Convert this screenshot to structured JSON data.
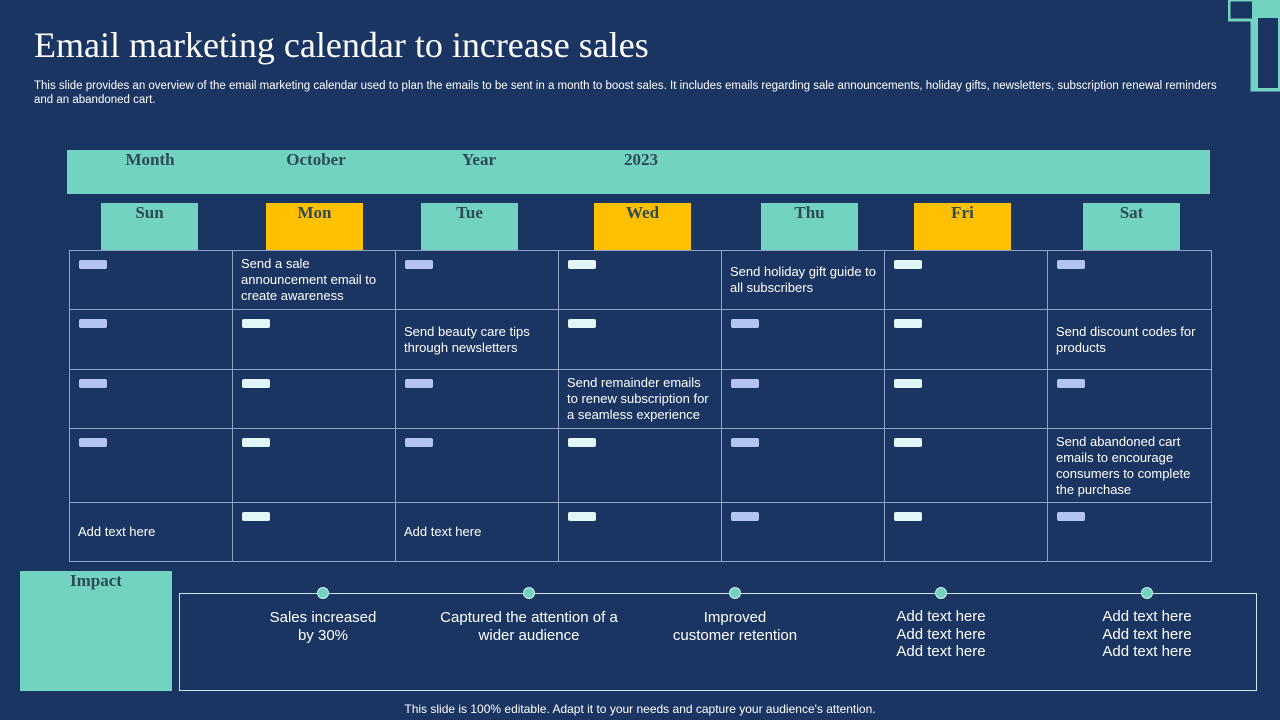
{
  "header": {
    "title": "Email marketing calendar to increase sales",
    "description": "This slide provides an overview of the email marketing calendar used to plan the emails to be sent in a month to boost sales. It includes emails regarding sale announcements, holiday gifts, newsletters, subscription renewal reminders and an abandoned cart."
  },
  "calendar": {
    "month_label": "Month",
    "month": "October",
    "year_label": "Year",
    "year": "2023",
    "days": [
      "Sun",
      "Mon",
      "Tue",
      "Wed",
      "Thu",
      "Fri",
      "Sat"
    ],
    "rows": [
      [
        null,
        "Send a sale announcement email to create awareness",
        null,
        null,
        "Send holiday gift guide to all subscribers",
        null,
        null
      ],
      [
        null,
        null,
        "Send beauty care tips through newsletters",
        null,
        null,
        null,
        "Send discount codes for products"
      ],
      [
        null,
        null,
        null,
        "Send remainder emails to renew subscription for a seamless experience",
        null,
        null,
        null
      ],
      [
        null,
        null,
        null,
        null,
        null,
        null,
        "Send abandoned cart emails to encourage consumers to complete the purchase"
      ],
      [
        "Add text here",
        null,
        "Add text here",
        null,
        null,
        null,
        null
      ]
    ]
  },
  "impact": {
    "label": "Impact",
    "items": [
      [
        "Sales increased",
        "by 30%"
      ],
      [
        "Captured the attention of a",
        "wider audience"
      ],
      [
        "Improved",
        "customer retention"
      ],
      [
        "Add text here",
        "Add text here",
        "Add text here"
      ],
      [
        "Add text here",
        "Add text here",
        "Add text here"
      ]
    ]
  },
  "footer": "This slide is 100% editable. Adapt it to your needs and capture your audience's attention."
}
